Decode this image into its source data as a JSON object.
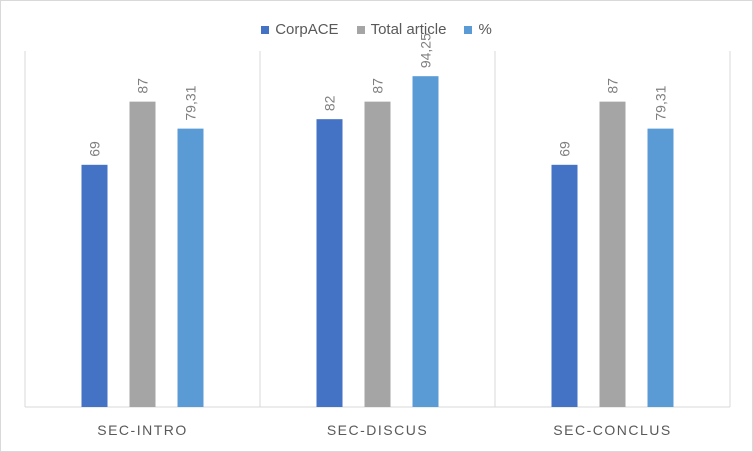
{
  "chart_data": {
    "type": "bar",
    "title": "",
    "xlabel": "",
    "ylabel": "",
    "categories": [
      "SEC-INTRO",
      "SEC-DISCUS",
      "SEC-CONCLUS"
    ],
    "series": [
      {
        "name": "CorpACE",
        "color": "#4472c4",
        "values": [
          69,
          82,
          69
        ],
        "labels": [
          "69",
          "82",
          "69"
        ]
      },
      {
        "name": "Total article",
        "color": "#a5a5a5",
        "values": [
          87,
          87,
          87
        ],
        "labels": [
          "87",
          "87",
          "87"
        ]
      },
      {
        "name": "%",
        "color": "#5b9bd5",
        "values": [
          79.31,
          94.25,
          79.31
        ],
        "labels": [
          "79,31",
          "94,25",
          "79,31"
        ]
      }
    ],
    "ylim": [
      0,
      100
    ],
    "grid": false,
    "legend_position": "top"
  }
}
